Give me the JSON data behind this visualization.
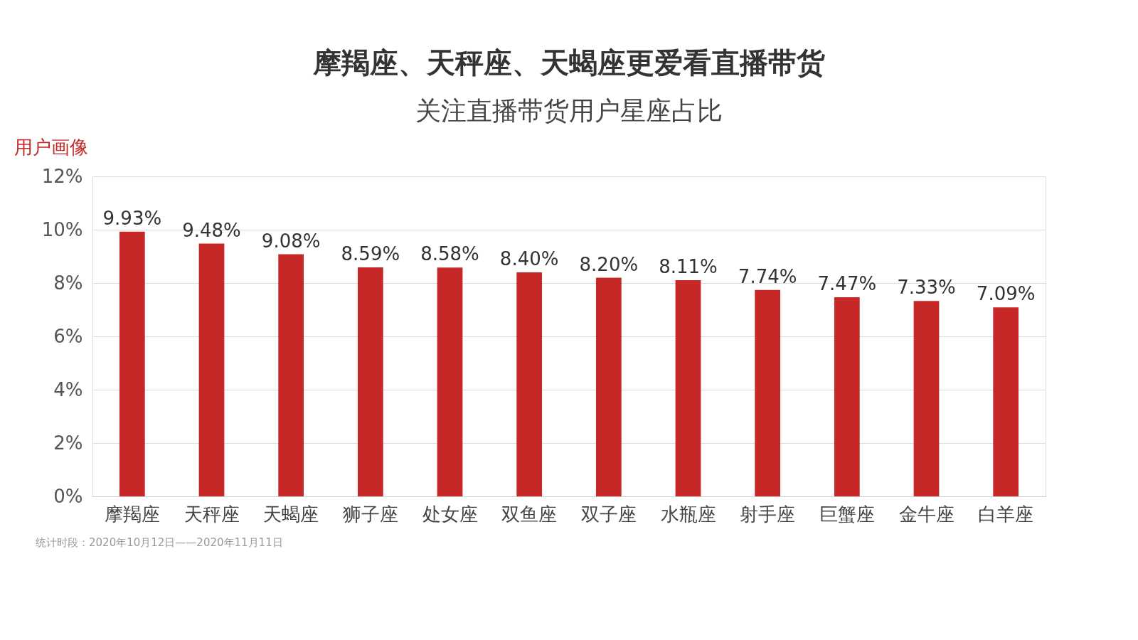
{
  "chart_data": {
    "type": "bar",
    "title": "摩羯座、天秤座、天蝎座更爱看直播带货",
    "subtitle": "关注直播带货用户星座占比",
    "categories": [
      "摩羯座",
      "天秤座",
      "天蝎座",
      "狮子座",
      "处女座",
      "双鱼座",
      "双子座",
      "水瓶座",
      "射手座",
      "巨蟹座",
      "金牛座",
      "白羊座"
    ],
    "values": [
      9.93,
      9.48,
      9.08,
      8.59,
      8.58,
      8.4,
      8.2,
      8.11,
      7.74,
      7.47,
      7.33,
      7.09
    ],
    "value_labels": [
      "9.93%",
      "9.48%",
      "9.08%",
      "8.59%",
      "8.58%",
      "8.40%",
      "8.20%",
      "8.11%",
      "7.74%",
      "7.47%",
      "7.33%",
      "7.09%"
    ],
    "color": "#c62828",
    "ylim": [
      0,
      12
    ],
    "yticks": [
      {
        "value": 0,
        "label": "0%"
      },
      {
        "value": 2,
        "label": "2%"
      },
      {
        "value": 4,
        "label": "4%"
      },
      {
        "value": 6,
        "label": "6%"
      },
      {
        "value": 8,
        "label": "8%"
      },
      {
        "value": 10,
        "label": "10%"
      },
      {
        "value": 12,
        "label": "12%"
      }
    ],
    "grid": "y",
    "annotations": [
      "用户画像",
      "统计时段：2020年10月12日——2020年11月11日"
    ]
  }
}
